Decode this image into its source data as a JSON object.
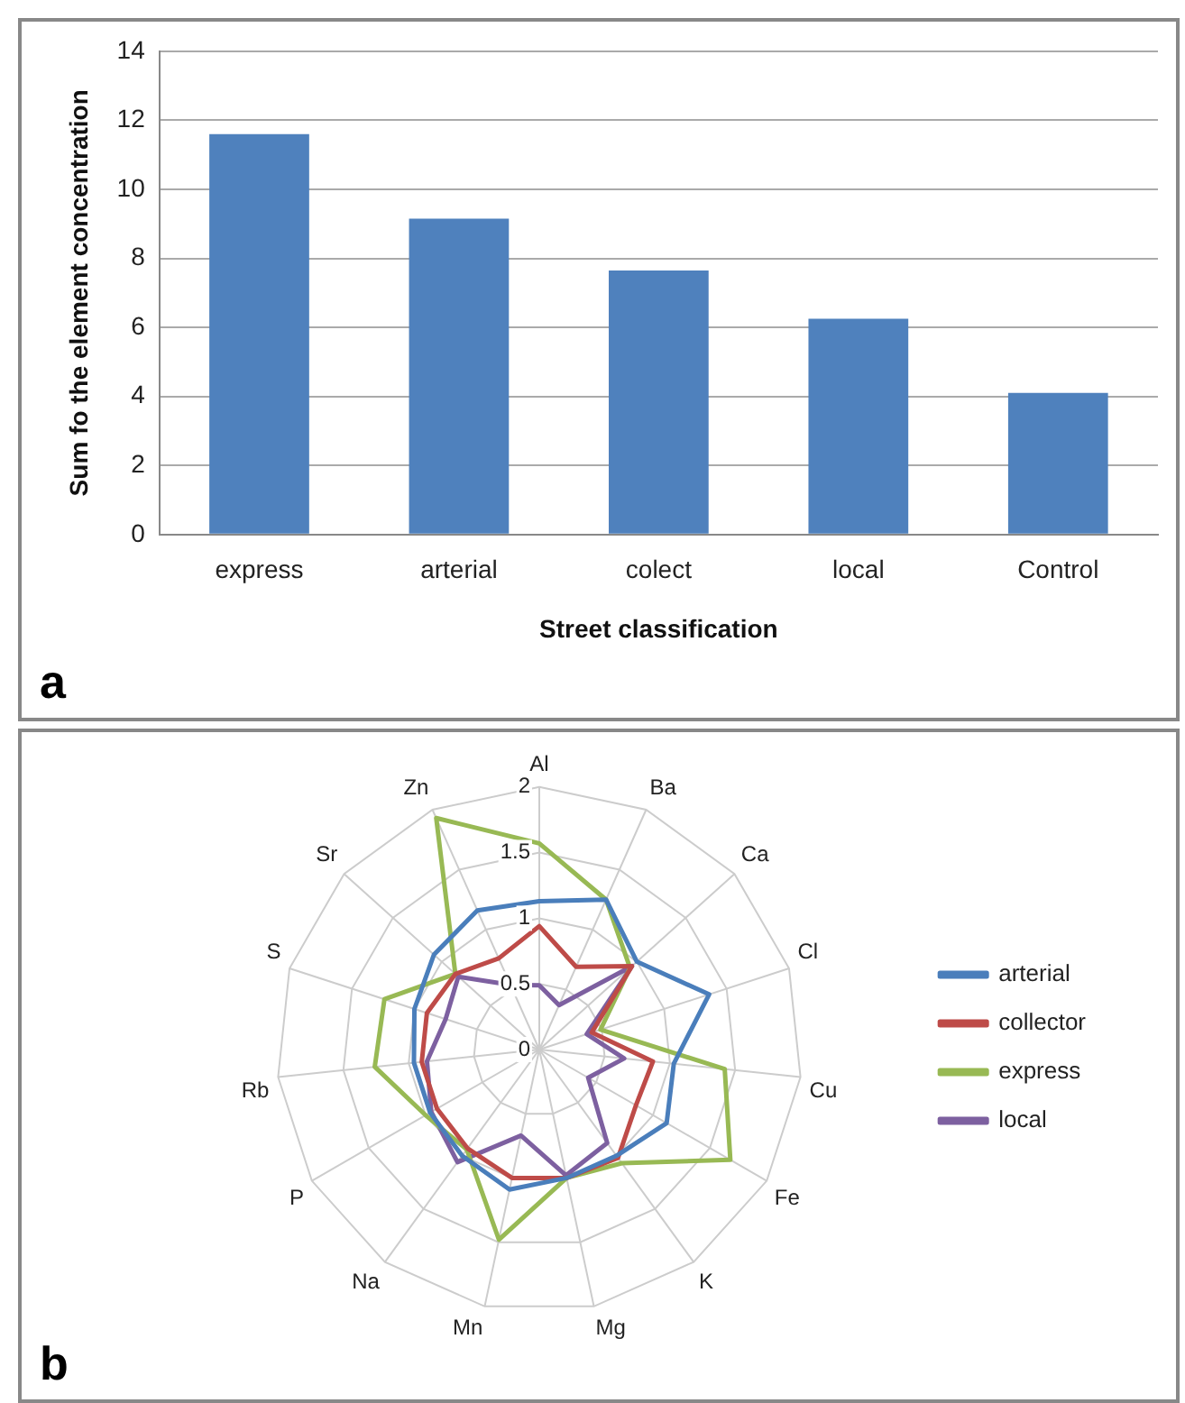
{
  "chart_data": [
    {
      "type": "bar",
      "xlabel": "Street classification",
      "ylabel": "Sum fo the element concentration",
      "annotations": [
        "a"
      ],
      "categories": [
        "express",
        "arterial",
        "colect",
        "local",
        "Control"
      ],
      "values": [
        11.6,
        9.15,
        7.65,
        6.25,
        4.1
      ],
      "color": "#4f81bd",
      "ylim": [
        0,
        14
      ],
      "yticks": [
        0,
        2,
        4,
        6,
        8,
        10,
        12,
        14
      ],
      "grid": "y"
    },
    {
      "type": "radar",
      "annotations": [
        "b"
      ],
      "categories": [
        "Al",
        "Ba",
        "Ca",
        "Cl",
        "Cu",
        "Fe",
        "K",
        "Mg",
        "Mn",
        "Na",
        "P",
        "Rb",
        "S",
        "Sr",
        "Zn"
      ],
      "ylim": [
        0,
        2
      ],
      "yticks": [
        0,
        0.5,
        1,
        1.5,
        2
      ],
      "grid": true,
      "legend": "right",
      "marker": "none",
      "series": [
        {
          "name": "arterial",
          "color": "#4a7ebb",
          "values": [
            1.13,
            1.25,
            1.0,
            1.36,
            1.03,
            1.12,
            1.0,
            1.0,
            1.09,
            1.0,
            0.96,
            0.96,
            1.0,
            1.08,
            1.16
          ]
        },
        {
          "name": "collector",
          "color": "#be4b48",
          "values": [
            0.94,
            0.69,
            0.95,
            0.42,
            0.87,
            0.85,
            1.02,
            1.0,
            1.0,
            0.93,
            0.9,
            0.9,
            0.9,
            0.86,
            0.76
          ]
        },
        {
          "name": "express",
          "color": "#98b954",
          "values": [
            1.57,
            1.25,
            0.93,
            0.49,
            1.42,
            1.68,
            1.07,
            1.0,
            1.48,
            0.94,
            1.0,
            1.26,
            1.24,
            0.86,
            1.93
          ]
        },
        {
          "name": "local",
          "color": "#7d60a0",
          "values": [
            0.49,
            0.37,
            0.95,
            0.38,
            0.65,
            0.43,
            0.88,
            0.98,
            0.67,
            1.06,
            0.95,
            0.86,
            0.75,
            0.83,
            0.54
          ]
        }
      ]
    }
  ]
}
